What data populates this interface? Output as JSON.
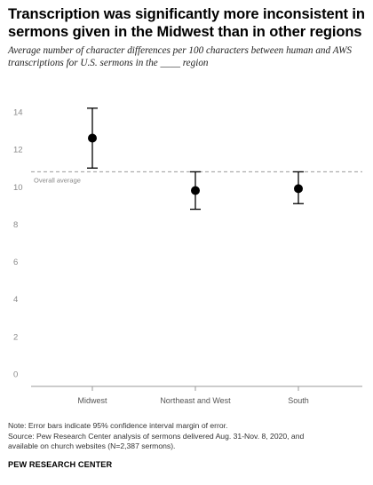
{
  "header": {
    "title": "Transcription was significantly more inconsistent in sermons given in the Midwest than in other regions",
    "subtitle": "Average number of character differences per 100 characters between human and AWS transcriptions for U.S. sermons in the ____ region"
  },
  "chart_data": {
    "type": "scatter",
    "title": "Transcription was significantly more inconsistent in sermons given in the Midwest than in other regions",
    "subtitle": "Average number of character differences per 100 characters between human and AWS transcriptions for U.S. sermons in the ____ region",
    "categories": [
      "Midwest",
      "Northeast and West",
      "South"
    ],
    "values": [
      12.6,
      9.8,
      9.9
    ],
    "error_low": [
      11.0,
      8.8,
      9.1
    ],
    "error_high": [
      14.2,
      10.8,
      10.8
    ],
    "ylim": [
      0,
      14
    ],
    "yticks": [
      "0",
      "2",
      "4",
      "6",
      "8",
      "10",
      "12",
      "14"
    ],
    "xlabel": "",
    "ylabel": "",
    "grid": false,
    "reference_line": {
      "value": 10.8,
      "label": "Overall average"
    }
  },
  "footer": {
    "note_line1": "Note: Error bars indicate 95% confidence interval margin of error.",
    "note_line2": "Source: Pew Research Center analysis of sermons delivered Aug. 31-Nov. 8, 2020, and",
    "note_line3": "available on church websites (N=2,387 sermons).",
    "brand": "PEW RESEARCH CENTER"
  }
}
